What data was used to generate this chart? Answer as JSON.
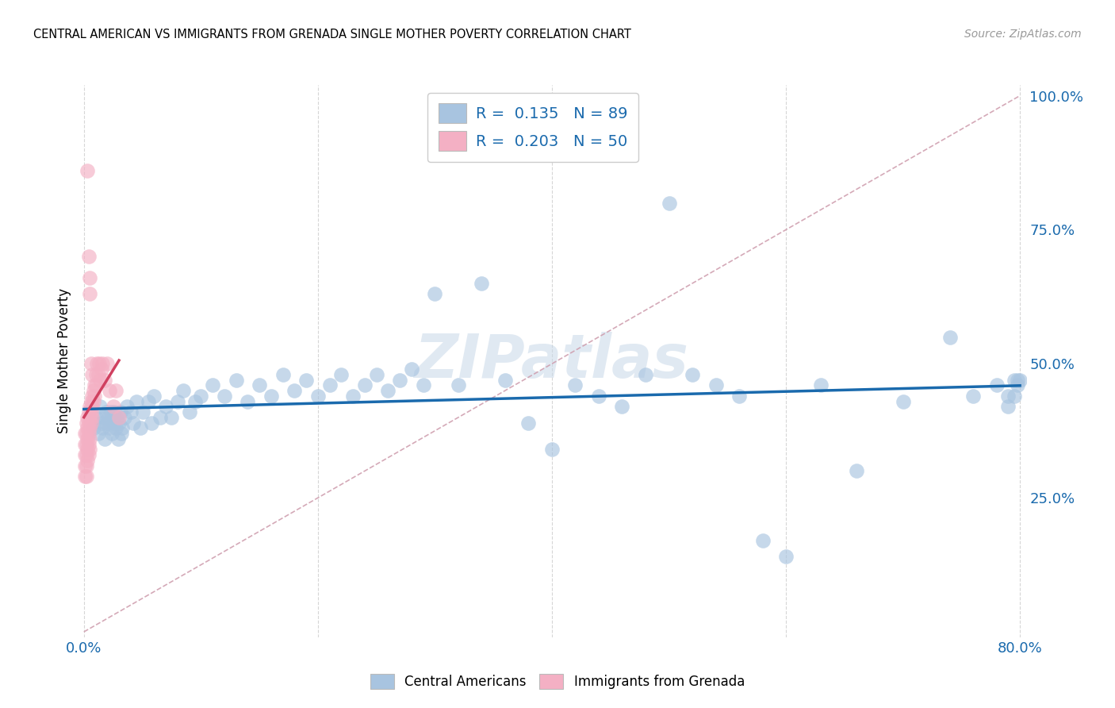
{
  "title": "CENTRAL AMERICAN VS IMMIGRANTS FROM GRENADA SINGLE MOTHER POVERTY CORRELATION CHART",
  "source": "Source: ZipAtlas.com",
  "ylabel": "Single Mother Poverty",
  "watermark": "ZIPatlas",
  "xlim": [
    0.0,
    0.8
  ],
  "ylim": [
    0.0,
    1.0
  ],
  "R_blue": 0.135,
  "N_blue": 89,
  "R_pink": 0.203,
  "N_pink": 50,
  "blue_color": "#a8c4e0",
  "pink_color": "#f4b0c4",
  "blue_line_color": "#1a6aad",
  "pink_line_color": "#d04060",
  "ref_line_color": "#d0a0b0",
  "blue_x": [
    0.008,
    0.01,
    0.012,
    0.014,
    0.015,
    0.016,
    0.017,
    0.018,
    0.019,
    0.02,
    0.021,
    0.022,
    0.023,
    0.024,
    0.025,
    0.026,
    0.027,
    0.028,
    0.029,
    0.03,
    0.031,
    0.032,
    0.033,
    0.035,
    0.037,
    0.04,
    0.042,
    0.045,
    0.048,
    0.05,
    0.055,
    0.058,
    0.06,
    0.065,
    0.07,
    0.075,
    0.08,
    0.085,
    0.09,
    0.095,
    0.1,
    0.11,
    0.12,
    0.13,
    0.14,
    0.15,
    0.16,
    0.17,
    0.18,
    0.19,
    0.2,
    0.21,
    0.22,
    0.23,
    0.24,
    0.25,
    0.26,
    0.27,
    0.28,
    0.29,
    0.3,
    0.32,
    0.34,
    0.36,
    0.38,
    0.4,
    0.42,
    0.44,
    0.46,
    0.48,
    0.5,
    0.52,
    0.54,
    0.56,
    0.58,
    0.6,
    0.63,
    0.66,
    0.7,
    0.74,
    0.76,
    0.78,
    0.79,
    0.79,
    0.795,
    0.795,
    0.798,
    0.798,
    0.8
  ],
  "blue_y": [
    0.38,
    0.4,
    0.37,
    0.42,
    0.39,
    0.38,
    0.4,
    0.36,
    0.41,
    0.39,
    0.4,
    0.38,
    0.41,
    0.37,
    0.39,
    0.41,
    0.38,
    0.4,
    0.36,
    0.39,
    0.41,
    0.37,
    0.38,
    0.4,
    0.42,
    0.41,
    0.39,
    0.43,
    0.38,
    0.41,
    0.43,
    0.39,
    0.44,
    0.4,
    0.42,
    0.4,
    0.43,
    0.45,
    0.41,
    0.43,
    0.44,
    0.46,
    0.44,
    0.47,
    0.43,
    0.46,
    0.44,
    0.48,
    0.45,
    0.47,
    0.44,
    0.46,
    0.48,
    0.44,
    0.46,
    0.48,
    0.45,
    0.47,
    0.49,
    0.46,
    0.63,
    0.46,
    0.65,
    0.47,
    0.39,
    0.34,
    0.46,
    0.44,
    0.42,
    0.48,
    0.8,
    0.48,
    0.46,
    0.44,
    0.17,
    0.14,
    0.46,
    0.3,
    0.43,
    0.55,
    0.44,
    0.46,
    0.44,
    0.42,
    0.44,
    0.47,
    0.46,
    0.47,
    0.47
  ],
  "pink_x": [
    0.001,
    0.001,
    0.001,
    0.001,
    0.001,
    0.002,
    0.002,
    0.002,
    0.002,
    0.002,
    0.002,
    0.003,
    0.003,
    0.003,
    0.003,
    0.003,
    0.004,
    0.004,
    0.004,
    0.004,
    0.004,
    0.005,
    0.005,
    0.005,
    0.005,
    0.005,
    0.006,
    0.006,
    0.006,
    0.007,
    0.007,
    0.007,
    0.008,
    0.008,
    0.009,
    0.009,
    0.01,
    0.01,
    0.011,
    0.012,
    0.013,
    0.014,
    0.015,
    0.016,
    0.018,
    0.02,
    0.022,
    0.025,
    0.027,
    0.03
  ],
  "pink_y": [
    0.37,
    0.35,
    0.33,
    0.31,
    0.29,
    0.39,
    0.37,
    0.35,
    0.33,
    0.31,
    0.29,
    0.4,
    0.38,
    0.36,
    0.34,
    0.32,
    0.41,
    0.39,
    0.37,
    0.35,
    0.33,
    0.42,
    0.4,
    0.38,
    0.36,
    0.34,
    0.43,
    0.41,
    0.39,
    0.44,
    0.42,
    0.4,
    0.45,
    0.43,
    0.46,
    0.44,
    0.48,
    0.46,
    0.5,
    0.48,
    0.5,
    0.47,
    0.49,
    0.5,
    0.47,
    0.5,
    0.45,
    0.42,
    0.45,
    0.4
  ],
  "pink_outliers_x": [
    0.003,
    0.004,
    0.005,
    0.005,
    0.006,
    0.007
  ],
  "pink_outliers_y": [
    0.86,
    0.7,
    0.66,
    0.63,
    0.5,
    0.48
  ]
}
